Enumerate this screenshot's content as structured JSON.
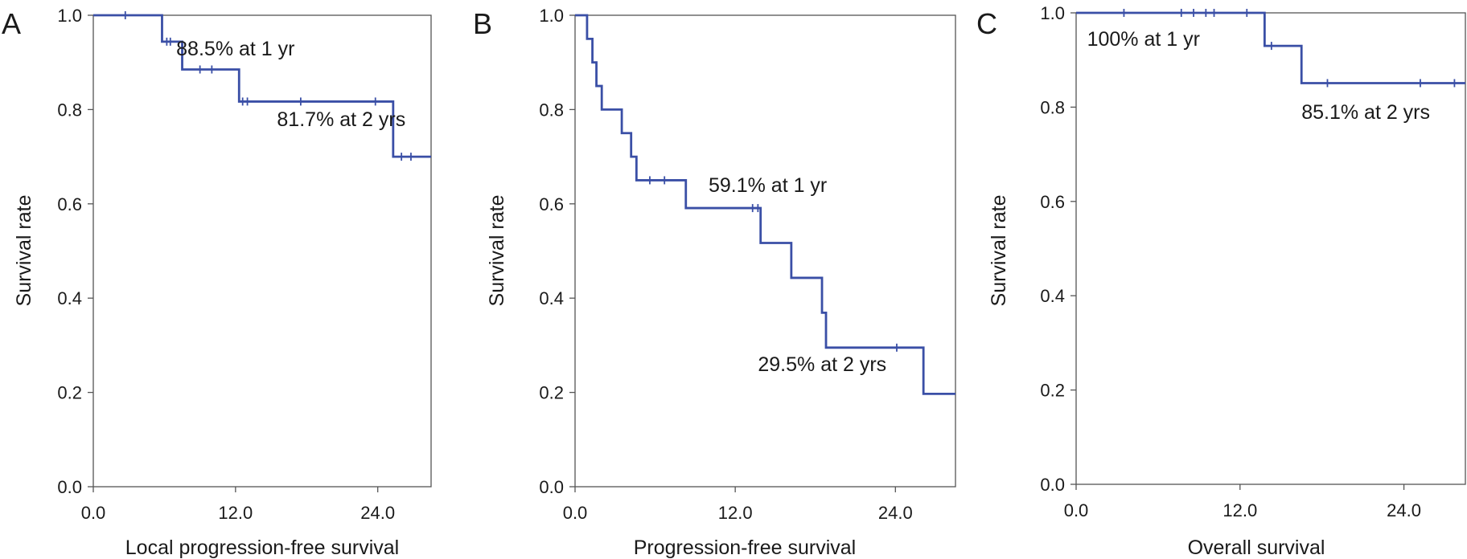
{
  "chart_data": [
    {
      "type": "line",
      "step": "km-survival",
      "panel_label": "A",
      "title": "",
      "xlabel": "Local progression-free survival",
      "ylabel": "Survival rate",
      "xlim": [
        0,
        28.5
      ],
      "ylim": [
        0,
        1.0
      ],
      "x_ticks": [
        0,
        12,
        24
      ],
      "x_tick_labels": [
        "0.0",
        "12.0",
        "24.0"
      ],
      "y_ticks": [
        0,
        0.2,
        0.4,
        0.6,
        0.8,
        1.0
      ],
      "y_tick_labels": [
        "0.0",
        "0.2",
        "0.4",
        "0.6",
        "0.8",
        "1.0"
      ],
      "grid": false,
      "color": "#3a4fa6",
      "series": [
        {
          "x": [
            0,
            5.8,
            7.5,
            12.3,
            25.3,
            28.5
          ],
          "y": [
            1.0,
            0.944,
            0.885,
            0.817,
            0.7,
            0.7
          ],
          "censored": [
            [
              2.7,
              1.0
            ],
            [
              6.2,
              0.944
            ],
            [
              6.5,
              0.944
            ],
            [
              9.0,
              0.885
            ],
            [
              10.0,
              0.885
            ],
            [
              12.6,
              0.817
            ],
            [
              13.0,
              0.817
            ],
            [
              17.5,
              0.817
            ],
            [
              23.8,
              0.817
            ],
            [
              26.0,
              0.7
            ],
            [
              26.8,
              0.7
            ]
          ]
        }
      ],
      "annotations": [
        {
          "text": "88.5% at 1 yr",
          "x": 7.0,
          "y": 0.915
        },
        {
          "text": "81.7% at 2 yrs",
          "x": 15.5,
          "y": 0.765
        }
      ]
    },
    {
      "type": "line",
      "step": "km-survival",
      "panel_label": "B",
      "title": "",
      "xlabel": "Progression-free survival",
      "ylabel": "Survival rate",
      "xlim": [
        0,
        28.5
      ],
      "ylim": [
        0,
        1.0
      ],
      "x_ticks": [
        0,
        12,
        24
      ],
      "x_tick_labels": [
        "0.0",
        "12.0",
        "24.0"
      ],
      "y_ticks": [
        0,
        0.2,
        0.4,
        0.6,
        0.8,
        1.0
      ],
      "y_tick_labels": [
        "0.0",
        "0.2",
        "0.4",
        "0.6",
        "0.8",
        "1.0"
      ],
      "grid": false,
      "color": "#3a4fa6",
      "series": [
        {
          "x": [
            0,
            0.9,
            1.3,
            1.6,
            2.0,
            3.5,
            4.2,
            4.6,
            8.3,
            13.9,
            16.2,
            18.5,
            18.8,
            26.1,
            28.5
          ],
          "y": [
            1.0,
            0.95,
            0.9,
            0.85,
            0.8,
            0.75,
            0.7,
            0.65,
            0.591,
            0.517,
            0.443,
            0.369,
            0.295,
            0.197,
            0.197
          ],
          "censored": [
            [
              5.6,
              0.65
            ],
            [
              6.7,
              0.65
            ],
            [
              13.3,
              0.591
            ],
            [
              13.7,
              0.591
            ],
            [
              24.1,
              0.295
            ]
          ]
        }
      ],
      "annotations": [
        {
          "text": "59.1% at 1 yr",
          "x": 10.0,
          "y": 0.625
        },
        {
          "text": "29.5% at 2 yrs",
          "x": 13.7,
          "y": 0.245
        }
      ]
    },
    {
      "type": "line",
      "step": "km-survival",
      "panel_label": "C",
      "title": "",
      "xlabel": "Overall survival",
      "ylabel": "Survival rate",
      "xlim": [
        0,
        28.5
      ],
      "ylim": [
        0,
        1.0
      ],
      "x_ticks": [
        0,
        12,
        24
      ],
      "x_tick_labels": [
        "0.0",
        "12.0",
        "24.0"
      ],
      "y_ticks": [
        0,
        0.2,
        0.4,
        0.6,
        0.8,
        1.0
      ],
      "y_tick_labels": [
        "0.0",
        "0.2",
        "0.4",
        "0.6",
        "0.8",
        "1.0"
      ],
      "grid": false,
      "color": "#3a4fa6",
      "series": [
        {
          "x": [
            0,
            13.8,
            16.5,
            28.5
          ],
          "y": [
            1.0,
            0.93,
            0.851,
            0.851
          ],
          "censored": [
            [
              3.5,
              1.0
            ],
            [
              7.7,
              1.0
            ],
            [
              8.6,
              1.0
            ],
            [
              9.5,
              1.0
            ],
            [
              10.1,
              1.0
            ],
            [
              12.5,
              1.0
            ],
            [
              14.3,
              0.93
            ],
            [
              18.4,
              0.851
            ],
            [
              25.2,
              0.851
            ],
            [
              27.7,
              0.851
            ]
          ]
        }
      ],
      "annotations": [
        {
          "text": "100% at 1 yr",
          "x": 0.8,
          "y": 0.93
        },
        {
          "text": "85.1% at 2 yrs",
          "x": 16.5,
          "y": 0.775
        }
      ]
    }
  ]
}
